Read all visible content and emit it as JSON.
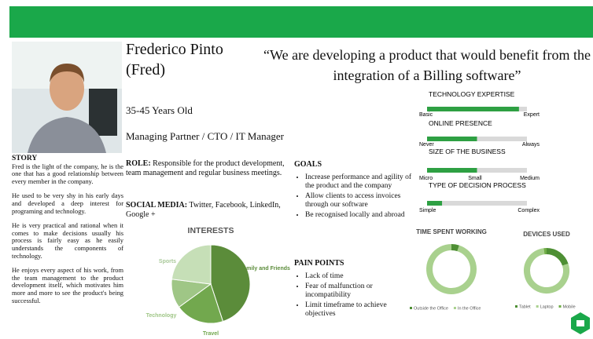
{
  "header": {
    "name": "Frederico Pinto",
    "nickname": "(Fred)",
    "quote": "“We are developing a product that would benefit from the integration of a Billing software”"
  },
  "profile": {
    "age": "35-45 Years Old",
    "job_title": "Managing Partner /  CTO / IT Manager"
  },
  "story": {
    "title": "STORY",
    "paragraphs": [
      "Fred is the light of the company, he is the one that has a good relationship between every member in the company.",
      "He used to be very shy in his early days and developed a deep interest for programing and technology.",
      "He is very practical and rational when it comes to make decisions usually his process is fairly easy as he easily understands the components of technology.",
      "He enjoys every aspect of his work, from the team management to the product development itself, which motivates him more and more to see the product's being successful."
    ]
  },
  "role": {
    "label": "ROLE:",
    "text": "Responsible for the product development, team management and regular business meetings."
  },
  "social_media": {
    "label": "SOCIAL MEDIA:",
    "text": "Twitter, Facebook, LinkedIn, Google +"
  },
  "goals": {
    "title": "GOALS",
    "items": [
      "Increase performance and agility of the product and the company",
      "Allow clients to access invoices through our software",
      "Be recognised locally and abroad"
    ]
  },
  "pain_points": {
    "title": "PAIN POINTS",
    "items": [
      "Lack of time",
      "Fear of malfunction or incompatibility",
      "Limit timeframe to achieve objectives"
    ]
  },
  "scales": {
    "xlim": [
      0,
      100
    ],
    "color": "#2ea043",
    "track": "#d9d9d9",
    "items": [
      {
        "title": "TECHNOLOGY EXPERTISE",
        "value": 92,
        "labels": [
          "Basic",
          "Expert"
        ]
      },
      {
        "title": "ONLINE PRESENCE",
        "value": 50,
        "labels": [
          "Never",
          "Always"
        ]
      },
      {
        "title": "SIZE OF THE BUSINESS",
        "value": 50,
        "labels": [
          "Micro",
          "Small",
          "Medium"
        ]
      },
      {
        "title": "TYPE OF DECISION PROCESS",
        "value": 15,
        "labels": [
          "Simple",
          "Complex"
        ]
      }
    ]
  },
  "interests": {
    "type": "pie",
    "title": "INTERESTS",
    "categories": [
      "Family and Friends",
      "Travel",
      "Technology",
      "Sports"
    ],
    "values": [
      45,
      20,
      12,
      23
    ],
    "colors": [
      "#5b8c3a",
      "#72a84e",
      "#9fc686",
      "#c6dfb7"
    ]
  },
  "time_spent": {
    "type": "donut",
    "title": "TIME SPENT WORKING",
    "categories": [
      "Outside the  Office",
      "In the Office"
    ],
    "values": [
      5,
      95
    ],
    "colors": [
      "#4e8f34",
      "#a9d18e"
    ]
  },
  "devices": {
    "type": "donut",
    "title": "DEVICES USED",
    "categories": [
      "Tablet",
      "Laptop",
      "Mobile"
    ],
    "values": [
      20,
      78,
      2
    ],
    "colors": [
      "#4e8f34",
      "#a9d18e",
      "#70ad47"
    ]
  }
}
